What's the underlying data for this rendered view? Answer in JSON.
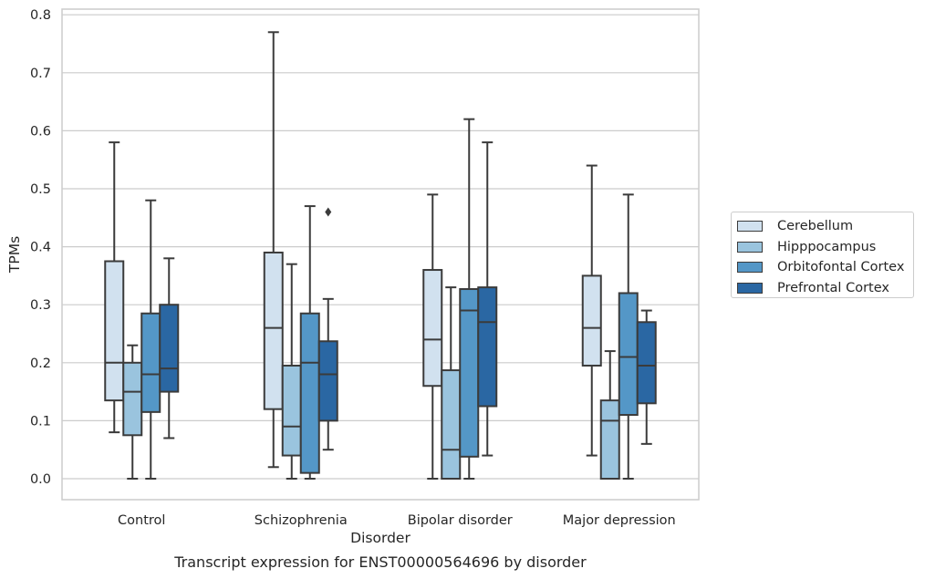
{
  "chart_data": {
    "type": "box",
    "title": "Transcript expression for ENST00000564696 by disorder",
    "xlabel": "Disorder",
    "ylabel": "TPMs",
    "ylim": [
      -0.04,
      0.81
    ],
    "yticks": [
      "0.0",
      "0.1",
      "0.2",
      "0.3",
      "0.4",
      "0.5",
      "0.6",
      "0.7",
      "0.8"
    ],
    "categories": [
      "Control",
      "Schizophrenia",
      "Bipolar disorder",
      "Major depression"
    ],
    "grid": true,
    "legend_position": "right",
    "series": [
      {
        "name": "Cerebellum",
        "color": "#d1e1ef",
        "boxes": [
          {
            "whislo": 0.08,
            "q1": 0.135,
            "med": 0.2,
            "q3": 0.375,
            "whishi": 0.58,
            "fliers": []
          },
          {
            "whislo": 0.02,
            "q1": 0.12,
            "med": 0.26,
            "q3": 0.39,
            "whishi": 0.77,
            "fliers": []
          },
          {
            "whislo": 0.0,
            "q1": 0.16,
            "med": 0.24,
            "q3": 0.36,
            "whishi": 0.49,
            "fliers": []
          },
          {
            "whislo": 0.04,
            "q1": 0.195,
            "med": 0.26,
            "q3": 0.35,
            "whishi": 0.54,
            "fliers": []
          }
        ]
      },
      {
        "name": "Hipppocampus",
        "color": "#9ac4de",
        "boxes": [
          {
            "whislo": 0.0,
            "q1": 0.075,
            "med": 0.15,
            "q3": 0.2,
            "whishi": 0.23,
            "fliers": []
          },
          {
            "whislo": 0.0,
            "q1": 0.04,
            "med": 0.09,
            "q3": 0.195,
            "whishi": 0.37,
            "fliers": []
          },
          {
            "whislo": 0.0,
            "q1": 0.0,
            "med": 0.05,
            "q3": 0.187,
            "whishi": 0.33,
            "fliers": []
          },
          {
            "whislo": 0.0,
            "q1": 0.0,
            "med": 0.1,
            "q3": 0.135,
            "whishi": 0.22,
            "fliers": []
          }
        ]
      },
      {
        "name": "Orbitofontal Cortex",
        "color": "#5497c7",
        "boxes": [
          {
            "whislo": 0.0,
            "q1": 0.115,
            "med": 0.18,
            "q3": 0.285,
            "whishi": 0.48,
            "fliers": []
          },
          {
            "whislo": 0.0,
            "q1": 0.01,
            "med": 0.2,
            "q3": 0.285,
            "whishi": 0.47,
            "fliers": []
          },
          {
            "whislo": 0.0,
            "q1": 0.038,
            "med": 0.29,
            "q3": 0.327,
            "whishi": 0.62,
            "fliers": []
          },
          {
            "whislo": 0.0,
            "q1": 0.11,
            "med": 0.21,
            "q3": 0.32,
            "whishi": 0.49,
            "fliers": []
          }
        ]
      },
      {
        "name": "Prefrontal Cortex",
        "color": "#2a67a3",
        "boxes": [
          {
            "whislo": 0.07,
            "q1": 0.15,
            "med": 0.19,
            "q3": 0.3,
            "whishi": 0.38,
            "fliers": []
          },
          {
            "whislo": 0.05,
            "q1": 0.1,
            "med": 0.18,
            "q3": 0.237,
            "whishi": 0.31,
            "fliers": [
              0.46
            ]
          },
          {
            "whislo": 0.04,
            "q1": 0.125,
            "med": 0.27,
            "q3": 0.33,
            "whishi": 0.58,
            "fliers": []
          },
          {
            "whislo": 0.06,
            "q1": 0.13,
            "med": 0.195,
            "q3": 0.27,
            "whishi": 0.29,
            "fliers": []
          }
        ]
      }
    ]
  }
}
